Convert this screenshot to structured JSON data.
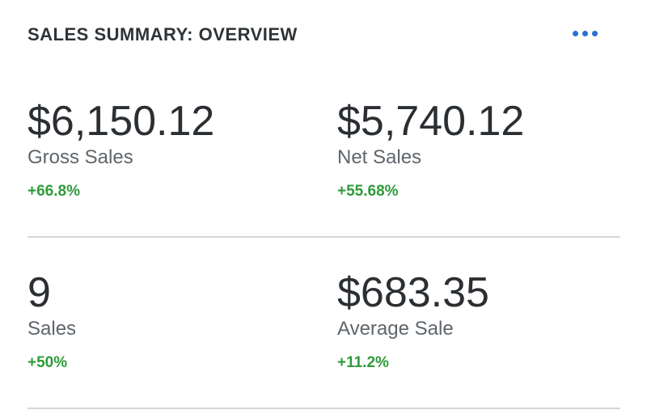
{
  "header": {
    "title": "SALES SUMMARY: OVERVIEW"
  },
  "metrics": [
    {
      "value": "$6,150.12",
      "label": "Gross Sales",
      "change": "+66.8%"
    },
    {
      "value": "$5,740.12",
      "label": "Net Sales",
      "change": "+55.68%"
    },
    {
      "value": "9",
      "label": "Sales",
      "change": "+50%"
    },
    {
      "value": "$683.35",
      "label": "Average Sale",
      "change": "+11.2%"
    }
  ]
}
